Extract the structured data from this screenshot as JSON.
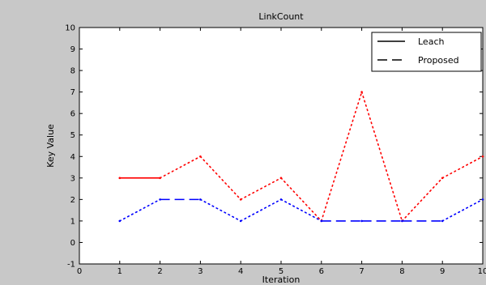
{
  "chart_data": {
    "type": "line",
    "title": "LinkCount",
    "xlabel": "Iteration",
    "ylabel": "Key Value",
    "xlim": [
      0,
      10
    ],
    "ylim": [
      -1,
      10
    ],
    "xticks": [
      "0",
      "1",
      "2",
      "3",
      "4",
      "5",
      "6",
      "7",
      "8",
      "9",
      "10"
    ],
    "yticks": [
      "-1",
      "0",
      "1",
      "2",
      "3",
      "4",
      "5",
      "6",
      "7",
      "8",
      "9",
      "10"
    ],
    "grid": false,
    "legend_position": "top-right",
    "series": [
      {
        "name": "Leach",
        "color": "#ff0000",
        "line_style": "solid with dots",
        "x": [
          1,
          2,
          3,
          4,
          5,
          6,
          7,
          8,
          9,
          10
        ],
        "y": [
          3,
          3,
          4,
          2,
          3,
          1,
          7,
          1,
          3,
          4
        ]
      },
      {
        "name": "Proposed",
        "color": "#0000ff",
        "line_style": "dashed with dots",
        "x": [
          1,
          2,
          3,
          4,
          5,
          6,
          7,
          8,
          9,
          10
        ],
        "y": [
          1,
          2,
          2,
          1,
          2,
          1,
          1,
          1,
          1,
          2
        ]
      }
    ]
  }
}
